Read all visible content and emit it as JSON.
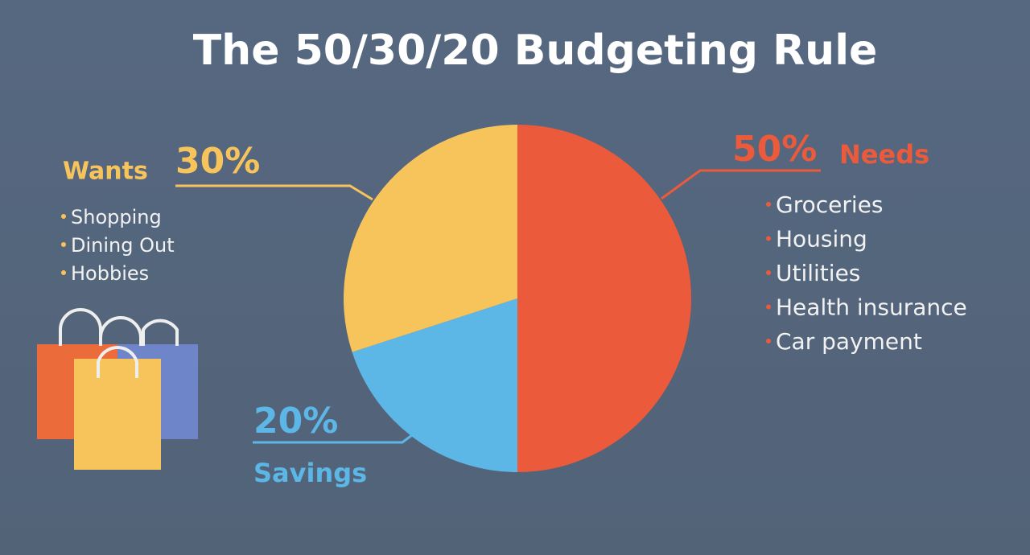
{
  "chart_data": {
    "type": "pie",
    "title": "The 50/30/20 Budgeting Rule",
    "categories": [
      "Needs",
      "Savings",
      "Wants"
    ],
    "values": [
      50,
      20,
      30
    ],
    "value_labels": [
      "50%",
      "20%",
      "30%"
    ],
    "colors": [
      "#ea5a3b",
      "#5cb6e6",
      "#f7c45c"
    ],
    "items": [
      [
        "Groceries",
        "Housing",
        "Utilities",
        "Health insurance",
        "Car payment"
      ],
      [],
      [
        "Shopping",
        "Dining Out",
        "Hobbies"
      ]
    ]
  }
}
